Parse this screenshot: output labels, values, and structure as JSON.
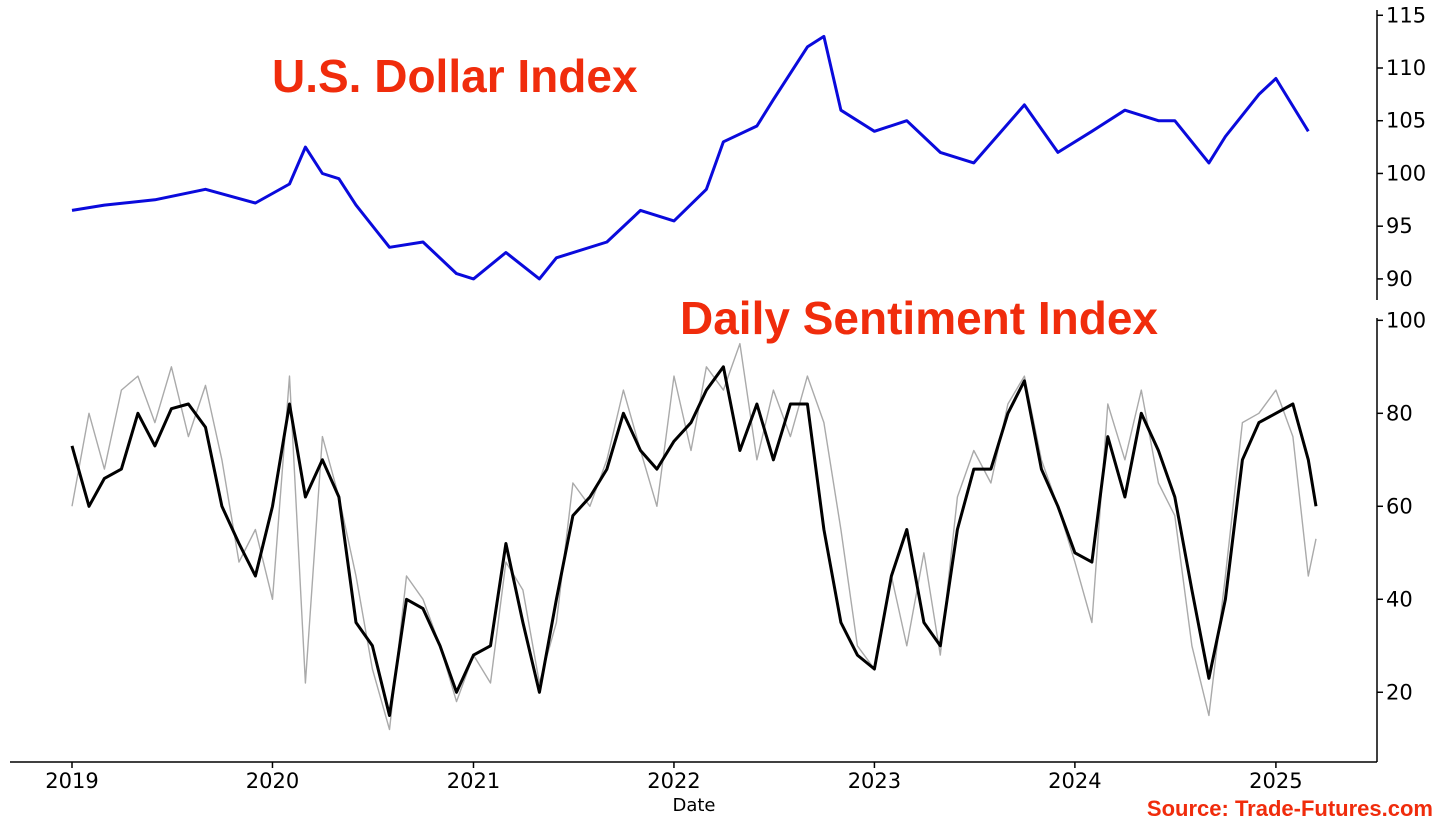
{
  "chart_data": [
    {
      "type": "line",
      "title": "U.S. Dollar Index",
      "ylim": [
        88,
        115.5
      ],
      "yticks": [
        90,
        95,
        100,
        105,
        110,
        115
      ],
      "y_axis_side": "right",
      "grid": false,
      "color": "#0a0adc",
      "x": [
        "2019-01",
        "2019-03",
        "2019-06",
        "2019-09",
        "2019-12",
        "2020-02",
        "2020-03",
        "2020-04",
        "2020-05",
        "2020-06",
        "2020-08",
        "2020-10",
        "2020-12",
        "2021-01",
        "2021-03",
        "2021-05",
        "2021-06",
        "2021-09",
        "2021-11",
        "2022-01",
        "2022-03",
        "2022-04",
        "2022-06",
        "2022-07",
        "2022-09",
        "2022-10",
        "2022-11",
        "2023-01",
        "2023-03",
        "2023-05",
        "2023-07",
        "2023-10",
        "2023-12",
        "2024-02",
        "2024-04",
        "2024-06",
        "2024-07",
        "2024-09",
        "2024-10",
        "2024-12",
        "2025-01",
        "2025-03"
      ],
      "y": [
        96.5,
        97.0,
        97.5,
        98.5,
        97.2,
        99.0,
        102.5,
        100.0,
        99.5,
        97.0,
        93.0,
        93.5,
        90.5,
        90.0,
        92.5,
        90.0,
        92.0,
        93.5,
        96.5,
        95.5,
        98.5,
        103.0,
        104.5,
        107.0,
        112.0,
        113.0,
        106.0,
        104.0,
        105.0,
        102.0,
        101.0,
        106.5,
        102.0,
        104.0,
        106.0,
        105.0,
        105.0,
        101.0,
        103.5,
        107.5,
        109.0,
        104.0
      ]
    },
    {
      "type": "line",
      "title": "Daily Sentiment Index",
      "ylim": [
        5,
        100.5
      ],
      "yticks": [
        20,
        40,
        60,
        80,
        100
      ],
      "y_axis_side": "right",
      "grid": false,
      "xlabel": "Date",
      "xticks": [
        "2019",
        "2020",
        "2021",
        "2022",
        "2023",
        "2024",
        "2025"
      ],
      "series": [
        {
          "color": "#aaaaaa",
          "x": [
            "2019-01",
            "2019-02",
            "2019-03",
            "2019-04",
            "2019-05",
            "2019-06",
            "2019-07",
            "2019-08",
            "2019-09",
            "2019-10",
            "2019-11",
            "2019-12",
            "2020-01",
            "2020-02",
            "2020-03",
            "2020-04",
            "2020-05",
            "2020-06",
            "2020-07",
            "2020-08",
            "2020-09",
            "2020-10",
            "2020-11",
            "2020-12",
            "2021-01",
            "2021-02",
            "2021-03",
            "2021-04",
            "2021-05",
            "2021-06",
            "2021-07",
            "2021-08",
            "2021-09",
            "2021-10",
            "2021-11",
            "2021-12",
            "2022-01",
            "2022-02",
            "2022-03",
            "2022-04",
            "2022-05",
            "2022-06",
            "2022-07",
            "2022-08",
            "2022-09",
            "2022-10",
            "2022-11",
            "2022-12",
            "2023-01",
            "2023-02",
            "2023-03",
            "2023-04",
            "2023-05",
            "2023-06",
            "2023-07",
            "2023-08",
            "2023-09",
            "2023-10",
            "2023-11",
            "2023-12",
            "2024-01",
            "2024-02",
            "2024-03",
            "2024-04",
            "2024-05",
            "2024-06",
            "2024-07",
            "2024-08",
            "2024-09",
            "2024-10",
            "2024-11",
            "2024-12",
            "2025-01",
            "2025-02",
            "2025-03",
            "2025-03-15"
          ],
          "y": [
            60,
            80,
            68,
            85,
            88,
            78,
            90,
            75,
            86,
            70,
            48,
            55,
            40,
            88,
            22,
            75,
            62,
            45,
            25,
            12,
            45,
            40,
            30,
            18,
            28,
            22,
            48,
            42,
            22,
            35,
            65,
            60,
            70,
            85,
            72,
            60,
            88,
            72,
            90,
            85,
            95,
            70,
            85,
            75,
            88,
            78,
            55,
            30,
            25,
            45,
            30,
            50,
            28,
            62,
            72,
            65,
            82,
            88,
            70,
            60,
            48,
            35,
            82,
            70,
            85,
            65,
            58,
            30,
            15,
            45,
            78,
            80,
            85,
            75,
            45,
            53
          ]
        },
        {
          "color": "#000000",
          "x": [
            "2019-01",
            "2019-02",
            "2019-03",
            "2019-04",
            "2019-05",
            "2019-06",
            "2019-07",
            "2019-08",
            "2019-09",
            "2019-10",
            "2019-11",
            "2019-12",
            "2020-01",
            "2020-02",
            "2020-03",
            "2020-04",
            "2020-05",
            "2020-06",
            "2020-07",
            "2020-08",
            "2020-09",
            "2020-10",
            "2020-11",
            "2020-12",
            "2021-01",
            "2021-02",
            "2021-03",
            "2021-04",
            "2021-05",
            "2021-06",
            "2021-07",
            "2021-08",
            "2021-09",
            "2021-10",
            "2021-11",
            "2021-12",
            "2022-01",
            "2022-02",
            "2022-03",
            "2022-04",
            "2022-05",
            "2022-06",
            "2022-07",
            "2022-08",
            "2022-09",
            "2022-10",
            "2022-11",
            "2022-12",
            "2023-01",
            "2023-02",
            "2023-03",
            "2023-04",
            "2023-05",
            "2023-06",
            "2023-07",
            "2023-08",
            "2023-09",
            "2023-10",
            "2023-11",
            "2023-12",
            "2024-01",
            "2024-02",
            "2024-03",
            "2024-04",
            "2024-05",
            "2024-06",
            "2024-07",
            "2024-08",
            "2024-09",
            "2024-10",
            "2024-11",
            "2024-12",
            "2025-01",
            "2025-02",
            "2025-03",
            "2025-03-15"
          ],
          "y": [
            73,
            60,
            66,
            68,
            80,
            73,
            81,
            82,
            77,
            60,
            52,
            45,
            60,
            82,
            62,
            70,
            62,
            35,
            30,
            15,
            40,
            38,
            30,
            20,
            28,
            30,
            52,
            35,
            20,
            40,
            58,
            62,
            68,
            80,
            72,
            68,
            74,
            78,
            85,
            90,
            72,
            82,
            70,
            82,
            82,
            55,
            35,
            28,
            25,
            45,
            55,
            35,
            30,
            55,
            68,
            68,
            80,
            87,
            68,
            60,
            50,
            48,
            75,
            62,
            80,
            72,
            62,
            42,
            23,
            40,
            70,
            78,
            80,
            82,
            70,
            60
          ]
        }
      ]
    }
  ],
  "source_note": "Source: Trade-Futures.com"
}
